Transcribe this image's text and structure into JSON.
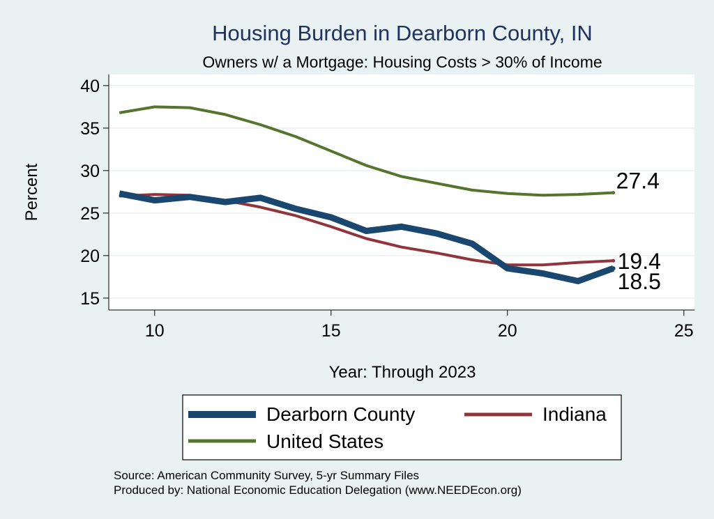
{
  "chart_data": {
    "type": "line",
    "title": "Housing Burden in Dearborn County, IN",
    "subtitle": "Owners w/ a Mortgage: Housing Costs > 30% of Income",
    "xlabel": "Year: Through 2023",
    "ylabel": "Percent",
    "xlim": [
      8.7,
      25.3
    ],
    "ylim": [
      13.6,
      41.3
    ],
    "xticks": [
      10,
      15,
      20,
      25
    ],
    "yticks": [
      15,
      20,
      25,
      30,
      35,
      40
    ],
    "grid": true,
    "legend_position": "bottom",
    "x": [
      9,
      10,
      11,
      12,
      13,
      14,
      15,
      16,
      17,
      18,
      19,
      20,
      21,
      22,
      23
    ],
    "series": [
      {
        "name": "Dearborn County",
        "color": "#1a476f",
        "values": [
          27.3,
          26.5,
          26.9,
          26.3,
          26.8,
          25.5,
          24.5,
          22.9,
          23.4,
          22.6,
          21.4,
          18.5,
          17.9,
          17.0,
          18.5
        ],
        "end_label": "18.5"
      },
      {
        "name": "Indiana",
        "color": "#90353b",
        "values": [
          27.0,
          27.2,
          27.1,
          26.5,
          25.7,
          24.7,
          23.4,
          22.0,
          21.0,
          20.3,
          19.5,
          18.9,
          18.9,
          19.2,
          19.4
        ],
        "end_label": "19.4"
      },
      {
        "name": "United States",
        "color": "#55752f",
        "values": [
          36.8,
          37.5,
          37.4,
          36.6,
          35.4,
          34.0,
          32.3,
          30.6,
          29.3,
          28.5,
          27.7,
          27.3,
          27.1,
          27.2,
          27.4
        ],
        "end_label": "27.4"
      }
    ]
  },
  "notes": {
    "source": "Source: American Community Survey, 5-yr Summary Files",
    "produced": "Produced by: National Economic Education Delegation (www.NEEDEcon.org)"
  }
}
